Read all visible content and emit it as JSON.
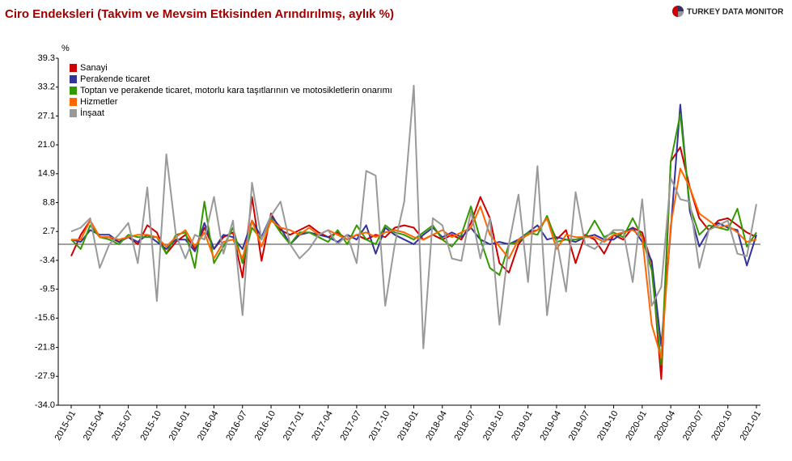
{
  "chart_data": {
    "type": "line",
    "title": "Ciro Endeksleri (Takvim ve Mevsim Etkisinden Arındırılmış, aylık %)",
    "logo": "TURKEY DATA MONITOR",
    "y_label": "%",
    "categories": [
      "2015-01",
      null,
      null,
      "2015-04",
      null,
      null,
      "2015-07",
      null,
      null,
      "2015-10",
      null,
      null,
      "2016-01",
      null,
      null,
      "2016-04",
      null,
      null,
      "2016-07",
      null,
      null,
      "2016-10",
      null,
      null,
      "2017-01",
      null,
      null,
      "2017-04",
      null,
      null,
      "2017-07",
      null,
      null,
      "2017-10",
      null,
      null,
      "2018-01",
      null,
      null,
      "2018-04",
      null,
      null,
      "2018-07",
      null,
      null,
      "2018-10",
      null,
      null,
      "2019-01",
      null,
      null,
      "2019-04",
      null,
      null,
      "2019-07",
      null,
      null,
      "2019-10",
      null,
      null,
      "2020-01",
      null,
      null,
      "2020-04",
      null,
      null,
      "2020-07",
      null,
      null,
      "2020-10",
      null,
      null,
      "2021-01"
    ],
    "series": [
      {
        "name": "Sanayi",
        "color": "#cc0000",
        "values": [
          -2.5,
          2,
          5,
          1.5,
          1.5,
          0.5,
          1.5,
          0,
          4,
          2.5,
          -2,
          0.5,
          2,
          -1,
          3.5,
          -1,
          1.5,
          2.5,
          -7,
          10,
          -3.5,
          6.5,
          3,
          2,
          3,
          4,
          2.5,
          1.5,
          2.5,
          1,
          2,
          1,
          2,
          1.5,
          3.5,
          4,
          3.5,
          1,
          2,
          1,
          2,
          1,
          4.5,
          10,
          5.5,
          -4,
          -6,
          0,
          2.5,
          3,
          5.5,
          1,
          3,
          -4,
          2,
          1,
          -2,
          2,
          1,
          3.5,
          2.5,
          -4,
          -28.5,
          17.5,
          20.5,
          12,
          5.5,
          3,
          5,
          5.5,
          4,
          2.5,
          1.5
        ]
      },
      {
        "name": "Perakende ticaret",
        "color": "#333399",
        "values": [
          1,
          0.5,
          3,
          2,
          2,
          0.5,
          1.5,
          0.5,
          2,
          0.5,
          -1,
          1,
          1,
          -1.5,
          4.5,
          -1,
          2,
          1.5,
          -1,
          5,
          1.5,
          6,
          3.5,
          0,
          2,
          2.5,
          2,
          1.5,
          0.5,
          2,
          1,
          4,
          -2,
          3.5,
          2,
          1,
          0,
          2,
          3.5,
          1.5,
          2.5,
          1.5,
          3.5,
          1,
          0,
          0.5,
          0,
          1,
          2.5,
          4,
          1,
          1.5,
          1,
          0.5,
          1.5,
          2,
          1,
          1,
          2.5,
          3.5,
          0.5,
          -3.5,
          -21.5,
          3,
          29.5,
          7,
          -0.5,
          3,
          4.5,
          3.5,
          3,
          -4.5,
          2
        ]
      },
      {
        "name": "Toptan ve perakende ticaret, motorlu kara taşıtlarının ve motosikletlerin onarımı",
        "color": "#339900",
        "values": [
          1,
          -1,
          4,
          1.5,
          1,
          0,
          2,
          1.5,
          1.5,
          1.5,
          -2,
          2,
          2.5,
          -5,
          9,
          -4,
          -0.5,
          3.5,
          -4,
          3.5,
          1,
          5.5,
          2.5,
          0,
          2.5,
          2.5,
          1.5,
          0.5,
          3,
          0,
          4,
          1,
          0,
          4,
          2.5,
          2,
          1,
          2.5,
          4,
          1,
          -0.5,
          2,
          8,
          1,
          -5,
          -6.5,
          0,
          0.5,
          2.5,
          2,
          6,
          0.5,
          1,
          1,
          1.5,
          5,
          1.5,
          2.5,
          1.5,
          5.5,
          1.5,
          -5.5,
          -25.5,
          17.5,
          27.5,
          8,
          2,
          4,
          3.5,
          3,
          7.5,
          -0.5,
          2.5
        ]
      },
      {
        "name": "Hizmetler",
        "color": "#ff6600",
        "values": [
          1,
          1,
          5,
          1.5,
          1.5,
          1,
          1.5,
          2,
          2,
          1.5,
          -0.5,
          1.5,
          3,
          -0.5,
          2.5,
          -3,
          0.5,
          1,
          -3,
          5,
          -0.5,
          5,
          3.5,
          3,
          2,
          3.5,
          2,
          3,
          2,
          1,
          2,
          2.5,
          1.5,
          2.5,
          3,
          2.5,
          1.5,
          1,
          2,
          3,
          1.5,
          2.5,
          3.5,
          8,
          2,
          -0.5,
          -3,
          1,
          2,
          3,
          5.5,
          -1,
          2,
          1.5,
          1.5,
          1.5,
          0.5,
          2,
          2.5,
          3,
          1.5,
          -17,
          -24,
          4,
          16,
          12,
          6.5,
          5,
          3.5,
          4,
          2.5,
          0.5,
          1
        ]
      },
      {
        "name": "İnşaat",
        "color": "#999999",
        "values": [
          2.7,
          3.5,
          5.5,
          -5,
          0,
          2,
          4.5,
          -4,
          12,
          -12,
          19,
          2,
          -3,
          2,
          1,
          10,
          -2,
          5,
          -15,
          13,
          1,
          6,
          9,
          0,
          -3,
          -1,
          2,
          3,
          0,
          2,
          -4,
          15.5,
          14.5,
          -13,
          0,
          9,
          33.5,
          -22,
          5.5,
          4,
          -3,
          -3.5,
          7,
          -3,
          5.5,
          -17,
          0,
          10.5,
          -8,
          16.5,
          -15,
          1,
          -10,
          11,
          0,
          -1,
          1,
          3,
          3,
          -8,
          9.5,
          -13,
          -9,
          14,
          9.5,
          9,
          -5,
          3,
          4,
          5,
          -2,
          -2.5,
          8.5
        ]
      }
    ],
    "ylim": [
      -34,
      39.3
    ],
    "yticks": [
      {
        "value": -34,
        "label": "-34.0"
      },
      -27.9,
      -21.8,
      -15.6,
      -9.5,
      -3.4,
      2.7,
      8.8,
      14.9,
      {
        "value": 21,
        "label": "21.0"
      },
      27.1,
      33.2,
      39.3
    ],
    "grid": false,
    "legend": "top-left"
  }
}
